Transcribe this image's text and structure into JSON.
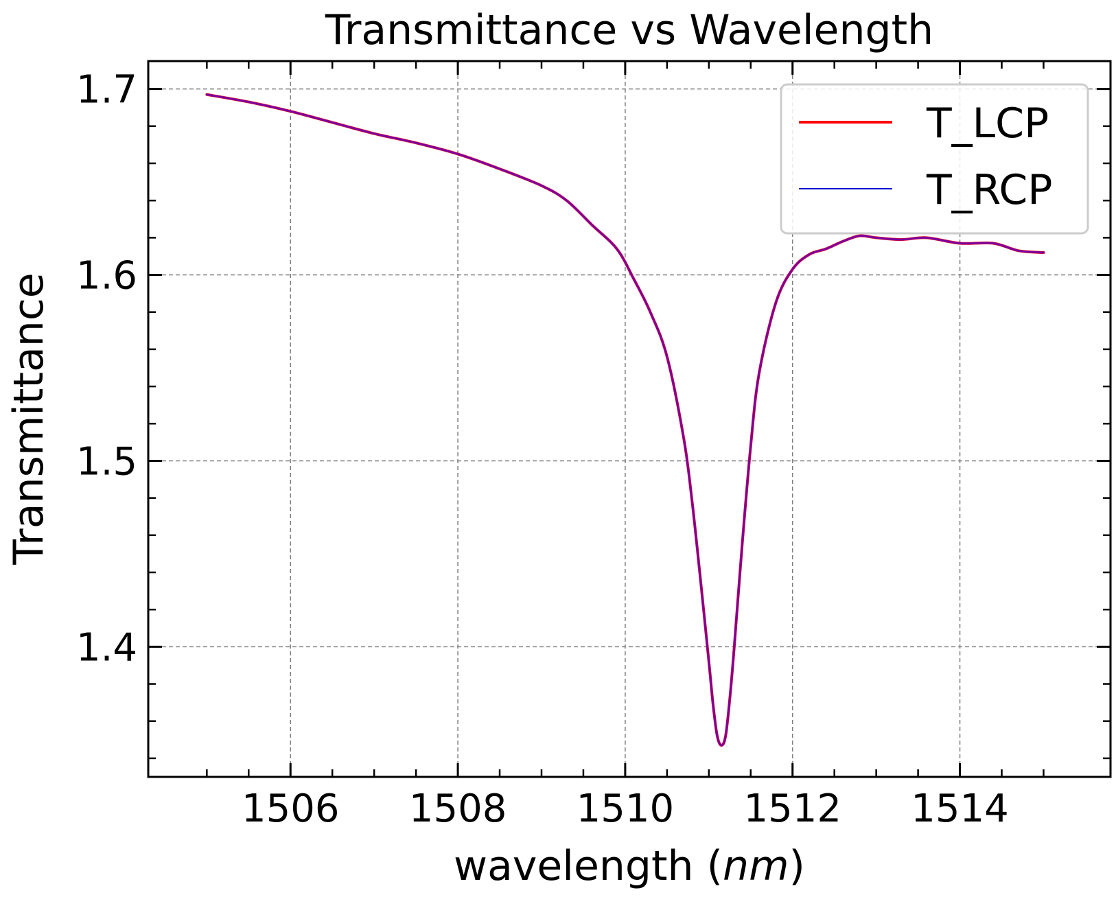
{
  "chart_data": {
    "type": "line",
    "title": "Transmittance vs Wavelength",
    "xlabel_text": "wavelength (",
    "xlabel_unit": "nm",
    "xlabel_close": ")",
    "ylabel": "Transmittance",
    "xlim": [
      1504.3,
      1515.8
    ],
    "ylim": [
      1.33,
      1.715
    ],
    "x_ticks": [
      1506,
      1508,
      1510,
      1512,
      1514
    ],
    "x_tick_labels": [
      "1506",
      "1508",
      "1510",
      "1512",
      "1514"
    ],
    "x_minor_ticks": [
      1505,
      1505.5,
      1506.5,
      1507,
      1507.5,
      1508.5,
      1509,
      1509.5,
      1510.5,
      1511,
      1511.5,
      1512.5,
      1513,
      1513.5,
      1514.5,
      1515
    ],
    "y_ticks": [
      1.4,
      1.5,
      1.6,
      1.7
    ],
    "y_tick_labels": [
      "1.4",
      "1.5",
      "1.6",
      "1.7"
    ],
    "y_minor_ticks": [
      1.34,
      1.36,
      1.38,
      1.42,
      1.44,
      1.46,
      1.48,
      1.52,
      1.54,
      1.56,
      1.58,
      1.62,
      1.64,
      1.66,
      1.68
    ],
    "grid": true,
    "legend_position": "top-right",
    "series": [
      {
        "name": "T_LCP",
        "color": "#ff0000",
        "x": [
          1505.0,
          1505.5,
          1506.0,
          1506.5,
          1507.0,
          1507.5,
          1508.0,
          1508.5,
          1509.0,
          1509.3,
          1509.6,
          1509.9,
          1510.1,
          1510.3,
          1510.5,
          1510.7,
          1510.8,
          1510.9,
          1511.0,
          1511.05,
          1511.1,
          1511.15,
          1511.2,
          1511.25,
          1511.3,
          1511.4,
          1511.5,
          1511.6,
          1511.8,
          1512.0,
          1512.2,
          1512.4,
          1512.6,
          1512.8,
          1513.0,
          1513.3,
          1513.6,
          1514.0,
          1514.4,
          1514.7,
          1515.0
        ],
        "y": [
          1.697,
          1.693,
          1.688,
          1.682,
          1.676,
          1.671,
          1.665,
          1.657,
          1.648,
          1.64,
          1.627,
          1.614,
          1.598,
          1.58,
          1.556,
          1.512,
          1.478,
          1.436,
          1.392,
          1.369,
          1.352,
          1.347,
          1.352,
          1.372,
          1.398,
          1.456,
          1.508,
          1.547,
          1.585,
          1.603,
          1.611,
          1.614,
          1.618,
          1.621,
          1.62,
          1.619,
          1.62,
          1.617,
          1.617,
          1.613,
          1.612
        ]
      },
      {
        "name": "T_RCP",
        "color": "#0000cc",
        "x": [
          1505.0,
          1505.5,
          1506.0,
          1506.5,
          1507.0,
          1507.5,
          1508.0,
          1508.5,
          1509.0,
          1509.3,
          1509.6,
          1509.9,
          1510.1,
          1510.3,
          1510.5,
          1510.7,
          1510.8,
          1510.9,
          1511.0,
          1511.05,
          1511.1,
          1511.15,
          1511.2,
          1511.25,
          1511.3,
          1511.4,
          1511.5,
          1511.6,
          1511.8,
          1512.0,
          1512.2,
          1512.4,
          1512.6,
          1512.8,
          1513.0,
          1513.3,
          1513.6,
          1514.0,
          1514.4,
          1514.7,
          1515.0
        ],
        "y": [
          1.697,
          1.693,
          1.688,
          1.682,
          1.676,
          1.671,
          1.665,
          1.657,
          1.648,
          1.64,
          1.627,
          1.614,
          1.598,
          1.58,
          1.556,
          1.512,
          1.478,
          1.436,
          1.392,
          1.369,
          1.352,
          1.347,
          1.352,
          1.372,
          1.398,
          1.456,
          1.508,
          1.547,
          1.585,
          1.603,
          1.611,
          1.614,
          1.618,
          1.621,
          1.62,
          1.619,
          1.62,
          1.617,
          1.617,
          1.613,
          1.612
        ]
      }
    ],
    "overlap_color": "#7a00a0"
  }
}
